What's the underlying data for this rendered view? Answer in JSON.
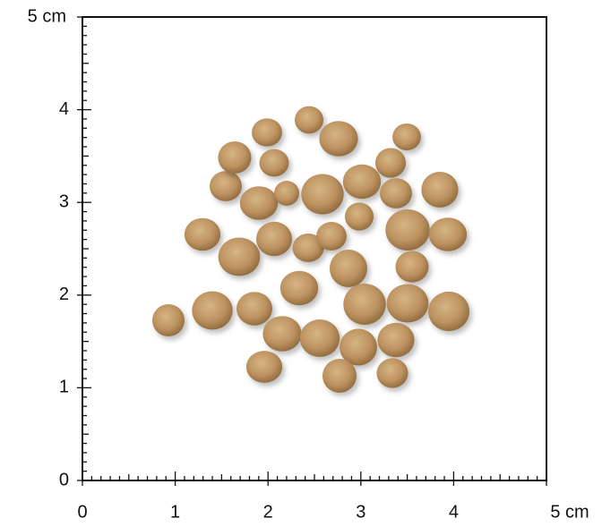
{
  "y_axis": {
    "labels": [
      "0",
      "1",
      "2",
      "3",
      "4",
      "5 cm"
    ]
  },
  "x_axis": {
    "labels": [
      "0",
      "1",
      "2",
      "3",
      "4",
      "5 cm"
    ]
  }
}
